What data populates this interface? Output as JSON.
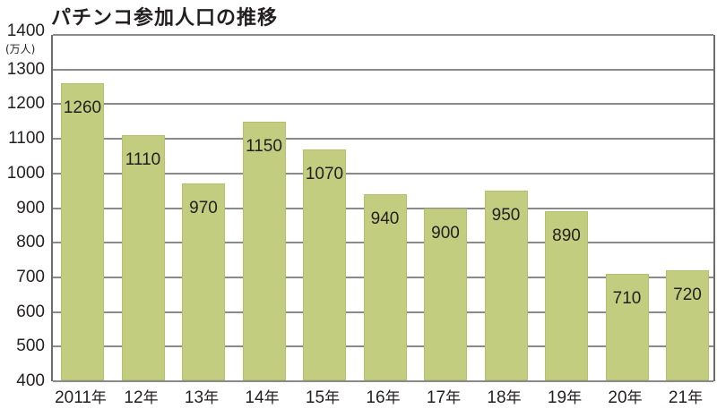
{
  "chart_data": {
    "type": "bar",
    "title": "パチンコ参加人口の推移",
    "ylabel": "(万人)",
    "xlabel": "",
    "categories": [
      "2011年",
      "12年",
      "13年",
      "14年",
      "15年",
      "16年",
      "17年",
      "18年",
      "19年",
      "20年",
      "21年"
    ],
    "values": [
      1260,
      1110,
      970,
      1150,
      1070,
      940,
      900,
      950,
      890,
      710,
      720
    ],
    "ylim": [
      400,
      1400
    ],
    "yticks": [
      400,
      500,
      600,
      700,
      800,
      900,
      1000,
      1100,
      1200,
      1300,
      1400
    ],
    "grid": true,
    "legend": "none",
    "bar_color": "#c2cd80"
  }
}
